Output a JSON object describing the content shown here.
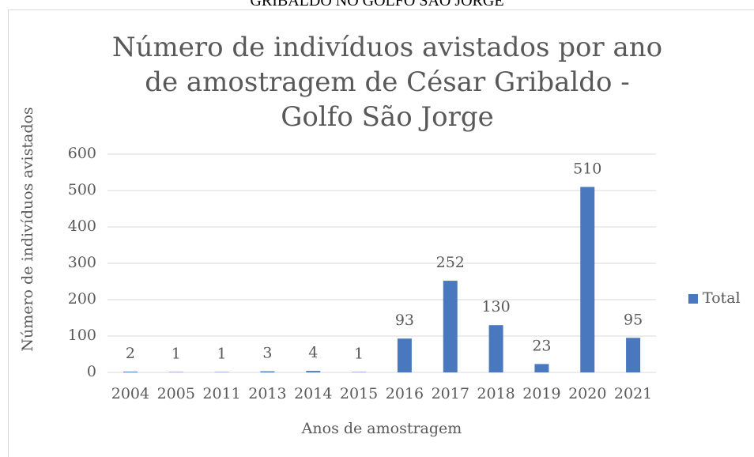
{
  "header": {
    "text": "GRIBALDO NO GOLFO SÃO JORGE"
  },
  "chart_data": {
    "type": "bar",
    "title": "Número de indivíduos avistados por ano de amostragem de César Gribaldo - Golfo São Jorge",
    "x_label": "Anos de amostragem",
    "y_label": "Número de indivíduos avistados",
    "categories": [
      "2004",
      "2005",
      "2011",
      "2013",
      "2014",
      "2015",
      "2016",
      "2017",
      "2018",
      "2019",
      "2020",
      "2021"
    ],
    "series": [
      {
        "name": "Total",
        "color": "#4a78bf",
        "values": [
          2,
          1,
          1,
          3,
          4,
          1,
          93,
          252,
          130,
          23,
          510,
          95
        ]
      }
    ],
    "ylim": [
      0,
      600
    ],
    "yticks": [
      0,
      100,
      200,
      300,
      400,
      500,
      600
    ],
    "grid": true,
    "legend": "right",
    "data_labels": true
  }
}
